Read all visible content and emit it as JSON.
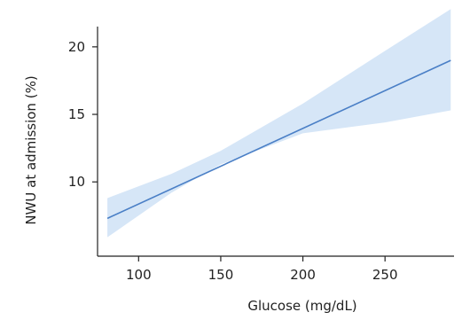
{
  "chart_data": {
    "type": "line",
    "xlabel": "Glucose (mg/dL)",
    "ylabel": "NWU at admission (%)",
    "xlim": [
      75,
      292
    ],
    "ylim": [
      4.5,
      21.5
    ],
    "xticks": [
      100,
      150,
      200,
      250
    ],
    "yticks": [
      10,
      15,
      20
    ],
    "grid": false,
    "colors": {
      "line": "#4a7fc6",
      "band": "#d6e6f7",
      "axis": "#222222"
    },
    "series": [
      {
        "x": [
          81,
          290
        ],
        "y": [
          7.3,
          19.0
        ],
        "ci_lower": [
          5.9,
          15.3
        ],
        "ci_upper": [
          8.8,
          22.8
        ],
        "ci_points": [
          {
            "x": 81,
            "lower": 5.9,
            "upper": 8.8
          },
          {
            "x": 120,
            "lower": 9.2,
            "upper": 10.6
          },
          {
            "x": 150,
            "lower": 11.3,
            "upper": 12.3
          },
          {
            "x": 200,
            "lower": 13.6,
            "upper": 15.8
          },
          {
            "x": 250,
            "lower": 14.4,
            "upper": 19.7
          },
          {
            "x": 290,
            "lower": 15.3,
            "upper": 22.8
          }
        ]
      }
    ]
  }
}
